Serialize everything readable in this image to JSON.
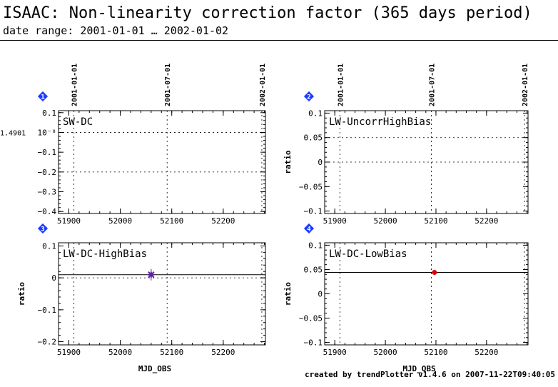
{
  "title": "ISAAC: Non-linearity correction factor (365 days period)",
  "subtitle": "date range: 2001-01-01 … 2002-01-02",
  "footer": "created by trendPlotter v1.4.6 on 2007-11-22T09:40:05",
  "colors": {
    "badge": "#1a3cff",
    "marker_purple": "#5b1fa6",
    "marker_red": "#e00000",
    "frame": "#000000",
    "grid": "#000000"
  },
  "chart_data": [
    {
      "panel": "1",
      "type": "scatter",
      "label": "SW-DC",
      "xlabel": "",
      "ylabel": "",
      "xlim": [
        51880,
        52282
      ],
      "ylim": [
        -0.41,
        0.11
      ],
      "xticks": [
        51900,
        52000,
        52100,
        52200
      ],
      "yticks": [
        0.1,
        0,
        -0.1,
        -0.2,
        -0.3,
        -0.4
      ],
      "ytick_labels": [
        "0.1",
        "10⁻⁸",
        "−0.1",
        "−0.2",
        "−0.3",
        "−0.4"
      ],
      "y_offset_label": "1.4901",
      "date_ticks": [
        {
          "x": 51910,
          "label": "2001-01-01"
        },
        {
          "x": 52091,
          "label": "2001-07-01"
        },
        {
          "x": 52275,
          "label": "2002-01-01"
        }
      ],
      "hgrid": [
        0,
        -0.2
      ],
      "reference_line": null,
      "points": []
    },
    {
      "panel": "2",
      "type": "scatter",
      "label": "LW-UncorrHighBias",
      "xlabel": "",
      "ylabel": "ratio",
      "xlim": [
        51880,
        52282
      ],
      "ylim": [
        -0.105,
        0.105
      ],
      "xticks": [
        51900,
        52000,
        52100,
        52200
      ],
      "yticks": [
        0.1,
        0.05,
        0,
        -0.05,
        -0.1
      ],
      "ytick_labels": [
        "0.1",
        "0.05",
        "0",
        "−0.05",
        "−0.1"
      ],
      "y_offset_label": "",
      "date_ticks": [
        {
          "x": 51910,
          "label": "2001-01-01"
        },
        {
          "x": 52091,
          "label": "2001-07-01"
        },
        {
          "x": 52275,
          "label": "2002-01-01"
        }
      ],
      "hgrid": [
        0.05,
        0
      ],
      "reference_line": null,
      "points": []
    },
    {
      "panel": "3",
      "type": "scatter",
      "label": "LW-DC-HighBias",
      "xlabel": "MJD_OBS",
      "ylabel": "ratio",
      "xlim": [
        51880,
        52282
      ],
      "ylim": [
        -0.21,
        0.11
      ],
      "xticks": [
        51900,
        52000,
        52100,
        52200
      ],
      "yticks": [
        0.1,
        0,
        -0.1,
        -0.2
      ],
      "ytick_labels": [
        "0.1",
        "0",
        "−0.1",
        "−0.2"
      ],
      "y_offset_label": "",
      "date_ticks": [],
      "hgrid": [
        0
      ],
      "reference_line": 0.01,
      "points": [
        {
          "x": 52060,
          "y": 0.01,
          "color": "#5b1fa6",
          "shape": "star"
        }
      ]
    },
    {
      "panel": "4",
      "type": "scatter",
      "label": "LW-DC-LowBias",
      "xlabel": "MJD_OBS",
      "ylabel": "ratio",
      "xlim": [
        51880,
        52282
      ],
      "ylim": [
        -0.105,
        0.105
      ],
      "xticks": [
        51900,
        52000,
        52100,
        52200
      ],
      "yticks": [
        0.1,
        0.05,
        0,
        -0.05,
        -0.1
      ],
      "ytick_labels": [
        "0.1",
        "0.05",
        "0",
        "−0.05",
        "−0.1"
      ],
      "y_offset_label": "",
      "date_ticks": [],
      "hgrid": [],
      "reference_line": 0.044,
      "points": [
        {
          "x": 52097,
          "y": 0.044,
          "color": "#e00000",
          "shape": "circle"
        }
      ]
    }
  ]
}
